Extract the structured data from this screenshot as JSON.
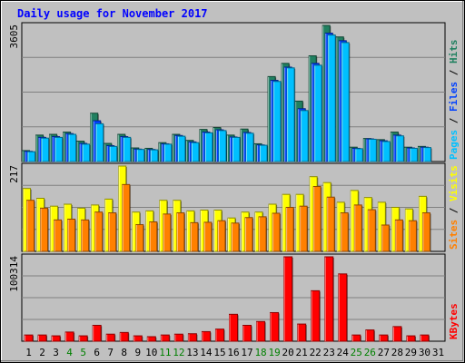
{
  "chart_data": {
    "type": "bar",
    "title": "Daily usage for November 2017",
    "categories": [
      "1",
      "2",
      "3",
      "4",
      "5",
      "6",
      "7",
      "8",
      "9",
      "10",
      "11",
      "12",
      "13",
      "14",
      "15",
      "16",
      "17",
      "18",
      "19",
      "20",
      "21",
      "22",
      "23",
      "24",
      "25",
      "26",
      "27",
      "28",
      "29",
      "30",
      "31"
    ],
    "weekend_days": [
      4,
      5,
      11,
      12,
      18,
      19,
      25,
      26
    ],
    "panels": [
      {
        "id": "hits_files_pages",
        "max_label": "3605",
        "ymax": 3605,
        "ylabel_parts": [
          {
            "text": "Pages",
            "color": "#00c0ff"
          },
          {
            "text": " / ",
            "color": "#000000"
          },
          {
            "text": "Files",
            "color": "#0040ff"
          },
          {
            "text": " / ",
            "color": "#000000"
          },
          {
            "text": "Hits",
            "color": "#208060"
          }
        ],
        "series": [
          {
            "name": "Hits",
            "color": "#208060",
            "values": [
              290,
              700,
              720,
              780,
              540,
              1280,
              480,
              720,
              360,
              350,
              500,
              720,
              560,
              850,
              900,
              700,
              860,
              470,
              2250,
              2600,
              1600,
              2800,
              3605,
              3300,
              380,
              610,
              580,
              780,
              380,
              400,
              null
            ]
          },
          {
            "name": "Files",
            "color": "#0040ff",
            "values": [
              270,
              640,
              660,
              740,
              480,
              1080,
              420,
              660,
              330,
              320,
              470,
              690,
              520,
              780,
              840,
              650,
              770,
              440,
              2150,
              2500,
              1400,
              2600,
              3400,
              3200,
              350,
              600,
              550,
              700,
              360,
              380,
              null
            ]
          },
          {
            "name": "Pages",
            "color": "#00c0ff",
            "values": [
              260,
              620,
              640,
              720,
              460,
              1000,
              400,
              640,
              320,
              310,
              460,
              670,
              500,
              760,
              820,
              640,
              750,
              430,
              2120,
              2480,
              1350,
              2550,
              3350,
              3150,
              340,
              590,
              530,
              680,
              350,
              370,
              null
            ]
          }
        ]
      },
      {
        "id": "visits_sites",
        "max_label": "217",
        "ymax": 217,
        "ylabel_parts": [
          {
            "text": "Sites",
            "color": "#ff8000"
          },
          {
            "text": " / ",
            "color": "#000000"
          },
          {
            "text": "Visits",
            "color": "#ffff00"
          }
        ],
        "series": [
          {
            "name": "Visits",
            "color": "#ffff00",
            "values": [
              160,
              135,
              115,
              120,
              110,
              118,
              133,
              217,
              100,
              103,
              130,
              130,
              103,
              105,
              105,
              85,
              100,
              100,
              120,
              145,
              145,
              190,
              175,
              125,
              155,
              137,
              125,
              112,
              108,
              140,
              null
            ]
          },
          {
            "name": "Sites",
            "color": "#ff8000",
            "values": [
              130,
              110,
              80,
              82,
              80,
              100,
              98,
              170,
              68,
              75,
              95,
              98,
              73,
              74,
              78,
              72,
              86,
              88,
              97,
              112,
              115,
              165,
              138,
              98,
              118,
              106,
              67,
              80,
              78,
              98,
              null
            ]
          }
        ]
      },
      {
        "id": "kbytes",
        "max_label": "100314",
        "ymax": 100314,
        "ylabel_parts": [
          {
            "text": "KBytes",
            "color": "#ff0000"
          }
        ],
        "series": [
          {
            "name": "KBytes",
            "color": "#ff0000",
            "values": [
              7400,
              7400,
              6400,
              10900,
              6400,
              18900,
              8400,
              10400,
              6400,
              5400,
              7400,
              8400,
              8900,
              11400,
              14400,
              32000,
              18900,
              23400,
              34000,
              100314,
              20400,
              60000,
              100314,
              80000,
              7400,
              13400,
              7400,
              17400,
              6400,
              7400,
              null
            ]
          }
        ]
      }
    ],
    "grid": true
  }
}
